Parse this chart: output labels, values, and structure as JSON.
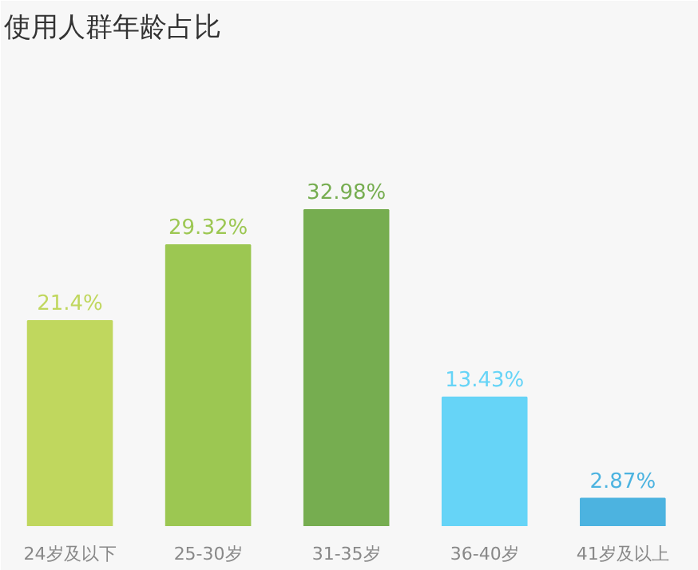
{
  "chart_data": {
    "type": "bar",
    "title": "使用人群年龄占比",
    "categories": [
      "24岁及以下",
      "25-30岁",
      "31-35岁",
      "36-40岁",
      "41岁及以上"
    ],
    "values": [
      21.4,
      29.32,
      32.98,
      13.43,
      2.87
    ],
    "value_labels": [
      "21.4%",
      "29.32%",
      "32.98%",
      "13.43%",
      "2.87%"
    ],
    "colors": [
      "#c0d75e",
      "#9cc752",
      "#76ad50",
      "#66d4f7",
      "#4cb3e0"
    ],
    "grid": false
  }
}
